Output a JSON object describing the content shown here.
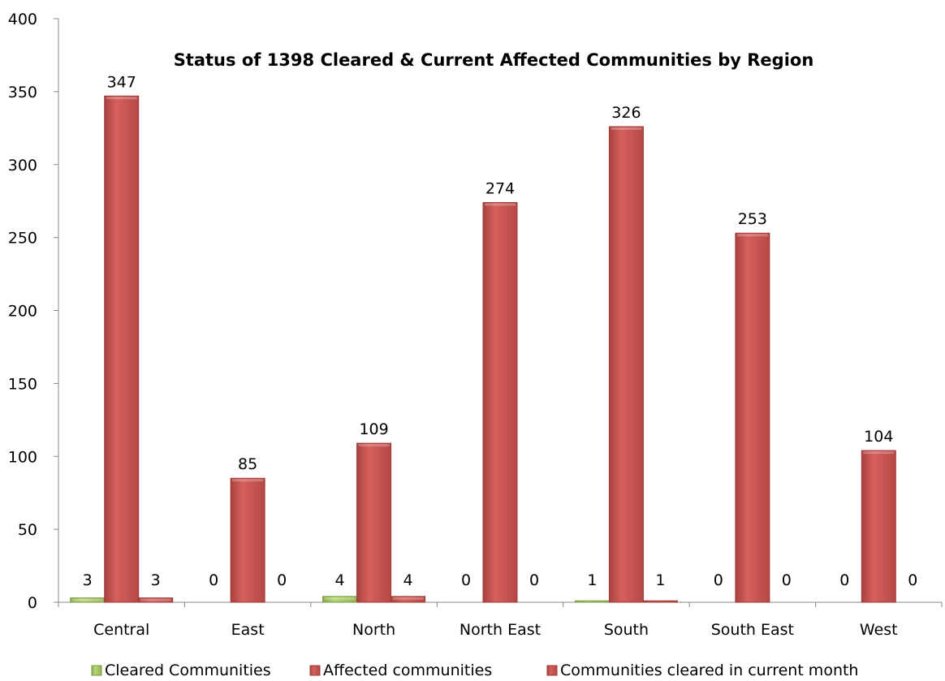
{
  "chart_data": {
    "type": "bar",
    "title": "Status of 1398 Cleared & Current Affected Communities by Region",
    "xlabel": "",
    "ylabel": "",
    "ylim": [
      0,
      400
    ],
    "yticks": [
      0,
      50,
      100,
      150,
      200,
      250,
      300,
      350,
      400
    ],
    "grid": false,
    "legend_position": "bottom",
    "categories": [
      "Central",
      "East",
      "North",
      "North East",
      "South",
      "South East",
      "West"
    ],
    "series": [
      {
        "name": "Cleared Communities",
        "color": "#9bbb59",
        "values": [
          3,
          0,
          4,
          0,
          1,
          0,
          0
        ]
      },
      {
        "name": "Affected communities",
        "color": "#c0504d",
        "values": [
          347,
          85,
          109,
          274,
          326,
          253,
          104
        ]
      },
      {
        "name": "Communities cleared in current month",
        "color": "#c0504d",
        "values": [
          3,
          0,
          4,
          0,
          1,
          0,
          0
        ]
      }
    ]
  }
}
